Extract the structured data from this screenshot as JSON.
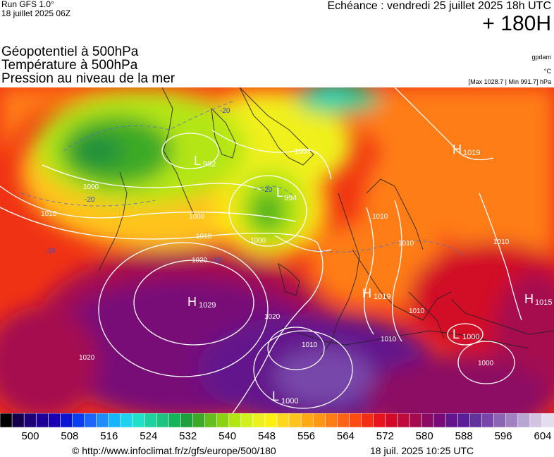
{
  "header": {
    "run_model": "Run GFS 1.0°",
    "run_date": "18 juillet 2025 06Z",
    "valid_time": "Echéance : vendredi 25 juillet 2025 18h UTC",
    "lead_time": "+ 180H"
  },
  "titles": {
    "line1": "Géopotentiel à 500hPa",
    "line2": "Température à 500hPa",
    "line3": "Pression au niveau de la mer"
  },
  "units": {
    "geopotential": "gpdam",
    "temperature": "°C",
    "pressure_range": "[Max 1028.7 | Min 991.7] hPa"
  },
  "map": {
    "centers": [
      {
        "letter": "H",
        "value": "1029"
      },
      {
        "letter": "H",
        "value": "1019"
      },
      {
        "letter": "H",
        "value": "1019"
      },
      {
        "letter": "H",
        "value": "1015"
      },
      {
        "letter": "L",
        "value": "992"
      },
      {
        "letter": "L",
        "value": "994"
      },
      {
        "letter": "L",
        "value": "1000"
      },
      {
        "letter": "L",
        "value": "1000"
      }
    ],
    "isobar_labels": [
      "1000",
      "1000",
      "1000",
      "1000",
      "1010",
      "1010",
      "1010",
      "1010",
      "1010",
      "1010",
      "1020",
      "1020",
      "1020",
      "1010",
      "1010",
      "1000"
    ],
    "temperature_labels": [
      "-20",
      "-20",
      "-20",
      "-10",
      "-10"
    ]
  },
  "colorbar": {
    "colors": [
      "#000000",
      "#14004b",
      "#1e0078",
      "#1e0096",
      "#1a00b4",
      "#0a14d2",
      "#0a3cf0",
      "#1e64ff",
      "#1e8cff",
      "#14b4ff",
      "#1ed2f0",
      "#1ee1c8",
      "#1ed2a0",
      "#1ec382",
      "#14b45a",
      "#1ea03c",
      "#3caa28",
      "#64be1e",
      "#8cd214",
      "#b4e614",
      "#d2f01e",
      "#ebf01e",
      "#fff014",
      "#ffd71e",
      "#ffc31e",
      "#ffaa14",
      "#ff9614",
      "#ff7d14",
      "#ff6414",
      "#ff4b14",
      "#f52d14",
      "#e6141e",
      "#d20a28",
      "#be0a3c",
      "#a50a50",
      "#8c0a64",
      "#780a78",
      "#64148c",
      "#5a1e9b",
      "#64329b",
      "#7846aa",
      "#8c64b4",
      "#a082c3",
      "#b9a5d2",
      "#d2c3e1",
      "#e6dcf0"
    ],
    "labels": [
      "500",
      "508",
      "516",
      "524",
      "532",
      "540",
      "548",
      "556",
      "564",
      "572",
      "580",
      "588",
      "596",
      "604"
    ]
  },
  "footer": {
    "url": "© http://www.infoclimat.fr/z/gfs/europe/500/180",
    "date": "18 juil. 2025 10:25 UTC"
  }
}
